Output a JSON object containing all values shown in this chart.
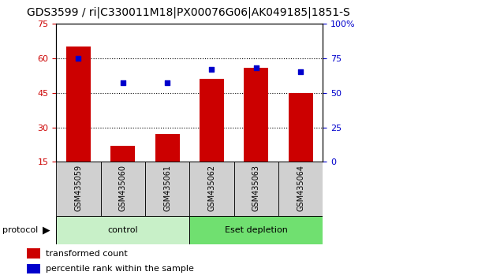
{
  "title": "GDS3599 / ri|C330011M18|PX00076G06|AK049185|1851-S",
  "categories": [
    "GSM435059",
    "GSM435060",
    "GSM435061",
    "GSM435062",
    "GSM435063",
    "GSM435064"
  ],
  "bar_values": [
    65.0,
    22.0,
    27.0,
    51.0,
    56.0,
    45.0
  ],
  "dot_values": [
    75.0,
    57.0,
    57.0,
    67.0,
    68.0,
    65.0
  ],
  "bar_color": "#cc0000",
  "dot_color": "#0000cc",
  "ylim_left": [
    15,
    75
  ],
  "ylim_right": [
    0,
    100
  ],
  "yticks_left": [
    15,
    30,
    45,
    60,
    75
  ],
  "yticks_right": [
    0,
    25,
    50,
    75,
    100
  ],
  "ytick_labels_right": [
    "0",
    "25",
    "50",
    "75",
    "100%"
  ],
  "group_control_label": "control",
  "group_eset_label": "Eset depletion",
  "group_control_color": "#c8f0c8",
  "group_eset_color": "#70e070",
  "protocol_label": "protocol",
  "legend_bar_label": "transformed count",
  "legend_dot_label": "percentile rank within the sample",
  "title_fontsize": 10,
  "tick_fontsize": 8,
  "label_fontsize": 8,
  "gridline_y": [
    30,
    45,
    60
  ],
  "bar_bottom": 15
}
